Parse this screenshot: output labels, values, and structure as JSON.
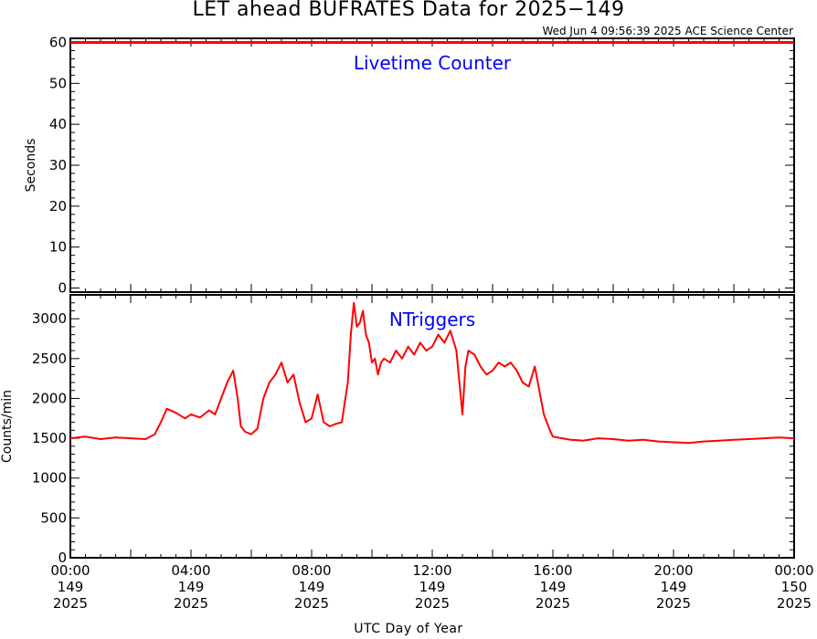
{
  "title": "LET ahead BUFRATES Data for 2025−149",
  "timestamp": "Wed Jun  4 09:56:39 2025 ACE Science Center",
  "xlabel": "UTC Day of Year",
  "x_ticks": [
    {
      "time": "00:00",
      "doy": "149",
      "year": "2025"
    },
    {
      "time": "04:00",
      "doy": "149",
      "year": "2025"
    },
    {
      "time": "08:00",
      "doy": "149",
      "year": "2025"
    },
    {
      "time": "12:00",
      "doy": "149",
      "year": "2025"
    },
    {
      "time": "16:00",
      "doy": "149",
      "year": "2025"
    },
    {
      "time": "20:00",
      "doy": "149",
      "year": "2025"
    },
    {
      "time": "00:00",
      "doy": "150",
      "year": "2025"
    }
  ],
  "colors": {
    "data": "#ff0000",
    "panel_label": "#0000ff",
    "axes": "#000000"
  },
  "chart_data": [
    {
      "type": "line",
      "title": "Livetime Counter",
      "ylabel": "Seconds",
      "ylim": [
        -1,
        61
      ],
      "yticks": [
        0,
        10,
        20,
        30,
        40,
        50,
        60
      ],
      "xlim": [
        0,
        24
      ],
      "x_unit": "hours UTC",
      "series": [
        {
          "x": [
            0,
            24
          ],
          "y": [
            60,
            60
          ]
        }
      ]
    },
    {
      "type": "line",
      "title": "NTriggers",
      "ylabel": "Counts/min",
      "ylim": [
        0,
        3300
      ],
      "yticks": [
        0,
        500,
        1000,
        1500,
        2000,
        2500,
        3000
      ],
      "xlim": [
        0,
        24
      ],
      "x_unit": "hours UTC",
      "series": [
        {
          "x": [
            0,
            0.5,
            1,
            1.5,
            2,
            2.5,
            2.8,
            3.0,
            3.2,
            3.5,
            3.8,
            4.0,
            4.3,
            4.6,
            4.8,
            5.0,
            5.2,
            5.4,
            5.55,
            5.65,
            5.8,
            6.0,
            6.2,
            6.4,
            6.6,
            6.8,
            7.0,
            7.2,
            7.4,
            7.6,
            7.8,
            8.0,
            8.2,
            8.4,
            8.6,
            8.8,
            9.0,
            9.2,
            9.3,
            9.4,
            9.5,
            9.6,
            9.7,
            9.8,
            9.9,
            10.0,
            10.1,
            10.2,
            10.3,
            10.4,
            10.6,
            10.8,
            11.0,
            11.2,
            11.4,
            11.6,
            11.8,
            12.0,
            12.2,
            12.4,
            12.6,
            12.8,
            12.9,
            13.0,
            13.1,
            13.2,
            13.4,
            13.6,
            13.8,
            14.0,
            14.2,
            14.4,
            14.6,
            14.8,
            15.0,
            15.2,
            15.4,
            15.6,
            15.7,
            15.8,
            15.9,
            16.0,
            16.3,
            16.6,
            17.0,
            17.5,
            18.0,
            18.5,
            19.0,
            19.5,
            20.0,
            20.5,
            21.0,
            21.5,
            22.0,
            22.5,
            23.0,
            23.5,
            24.0
          ],
          "y": [
            1500,
            1520,
            1490,
            1510,
            1500,
            1490,
            1550,
            1700,
            1870,
            1820,
            1750,
            1800,
            1760,
            1850,
            1800,
            2000,
            2200,
            2350,
            2000,
            1650,
            1580,
            1550,
            1620,
            2000,
            2200,
            2300,
            2450,
            2200,
            2300,
            1950,
            1700,
            1750,
            2050,
            1700,
            1650,
            1680,
            1700,
            2200,
            2800,
            3200,
            2900,
            2950,
            3100,
            2800,
            2700,
            2450,
            2500,
            2300,
            2450,
            2500,
            2450,
            2600,
            2500,
            2650,
            2550,
            2700,
            2600,
            2650,
            2800,
            2700,
            2850,
            2600,
            2200,
            1800,
            2400,
            2600,
            2550,
            2400,
            2300,
            2350,
            2450,
            2400,
            2450,
            2350,
            2200,
            2150,
            2400,
            2000,
            1800,
            1700,
            1600,
            1520,
            1500,
            1480,
            1470,
            1500,
            1490,
            1470,
            1480,
            1460,
            1450,
            1440,
            1460,
            1470,
            1480,
            1490,
            1500,
            1510,
            1500
          ]
        }
      ]
    }
  ]
}
